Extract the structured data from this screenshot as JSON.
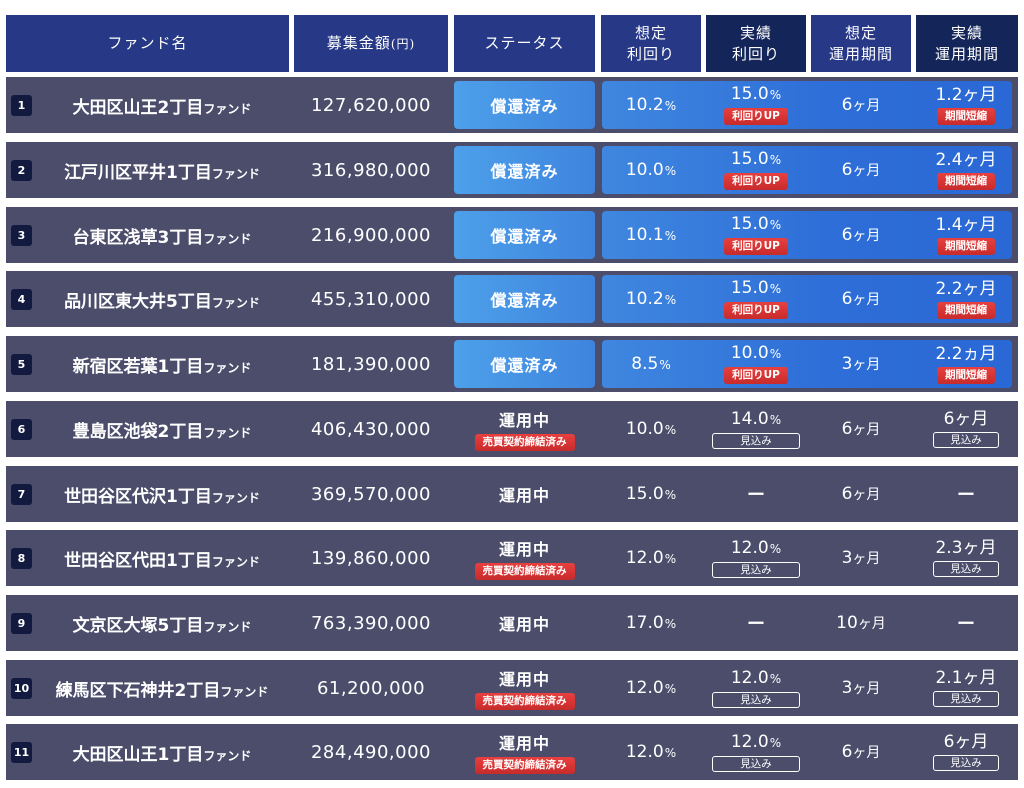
{
  "header": {
    "fund_name": "ファンド名",
    "amount": "募集金額",
    "amount_unit": "(円)",
    "status": "ステータス",
    "expected_yield_line1": "想定",
    "expected_yield_line2": "利回り",
    "actual_yield_line1": "実績",
    "actual_yield_line2": "利回り",
    "expected_period_line1": "想定",
    "expected_period_line2": "運用期間",
    "actual_period_line1": "実績",
    "actual_period_line2": "運用期間"
  },
  "colors": {
    "header_blue": "#263886",
    "header_navy": "#142659",
    "row_bg": "#4b4d6b",
    "redeemed_bg": "#3e84de",
    "badge_red": "#d23333"
  },
  "rows": [
    {
      "no": "1",
      "name": "大田区山王2丁目",
      "suffix": "ファンド",
      "amount": "127,620,000",
      "status": "償還済み",
      "status_badge": "",
      "expected_yield": "10.2",
      "actual_yield": "15.0",
      "actual_yield_unit": "%",
      "actual_yield_badge": "利回りUP",
      "expected_period": "6",
      "expected_period_unit": "ヶ月",
      "actual_period": "1.2",
      "actual_period_unit": "ヶ月",
      "actual_period_badge": "期間短縮",
      "redeemed": true
    },
    {
      "no": "2",
      "name": "江戸川区平井1丁目",
      "suffix": "ファンド",
      "amount": "316,980,000",
      "status": "償還済み",
      "status_badge": "",
      "expected_yield": "10.0",
      "actual_yield": "15.0",
      "actual_yield_unit": "%",
      "actual_yield_badge": "利回りUP",
      "expected_period": "6",
      "expected_period_unit": "ヶ月",
      "actual_period": "2.4",
      "actual_period_unit": "ヶ月",
      "actual_period_badge": "期間短縮",
      "redeemed": true
    },
    {
      "no": "3",
      "name": "台東区浅草3丁目",
      "suffix": "ファンド",
      "amount": "216,900,000",
      "status": "償還済み",
      "status_badge": "",
      "expected_yield": "10.1",
      "actual_yield": "15.0",
      "actual_yield_unit": "%",
      "actual_yield_badge": "利回りUP",
      "expected_period": "6",
      "expected_period_unit": "ヶ月",
      "actual_period": "1.4",
      "actual_period_unit": "ヶ月",
      "actual_period_badge": "期間短縮",
      "redeemed": true
    },
    {
      "no": "4",
      "name": "品川区東大井5丁目",
      "suffix": "ファンド",
      "amount": "455,310,000",
      "status": "償還済み",
      "status_badge": "",
      "expected_yield": "10.2",
      "actual_yield": "15.0",
      "actual_yield_unit": "%",
      "actual_yield_badge": "利回りUP",
      "expected_period": "6",
      "expected_period_unit": "ヶ月",
      "actual_period": "2.2",
      "actual_period_unit": "ヶ月",
      "actual_period_badge": "期間短縮",
      "redeemed": true
    },
    {
      "no": "5",
      "name": "新宿区若葉1丁目",
      "suffix": "ファンド",
      "amount": "181,390,000",
      "status": "償還済み",
      "status_badge": "",
      "expected_yield": "8.5",
      "actual_yield": "10.0",
      "actual_yield_unit": "%",
      "actual_yield_badge": "利回りUP",
      "expected_period": "3",
      "expected_period_unit": "ヶ月",
      "actual_period": "2.2",
      "actual_period_unit": "ヵ月",
      "actual_period_badge": "期間短縮",
      "redeemed": true
    },
    {
      "no": "6",
      "name": "豊島区池袋2丁目",
      "suffix": "ファンド",
      "amount": "406,430,000",
      "status": "運用中",
      "status_badge": "売買契約締結済み",
      "expected_yield": "10.0",
      "actual_yield": "14.0",
      "actual_yield_unit": "%",
      "actual_yield_badge": "見込み",
      "expected_period": "6",
      "expected_period_unit": "ヶ月",
      "actual_period": "6",
      "actual_period_unit": "ヶ月",
      "actual_period_badge": "見込み",
      "redeemed": false
    },
    {
      "no": "7",
      "name": "世田谷区代沢1丁目",
      "suffix": "ファンド",
      "amount": "369,570,000",
      "status": "運用中",
      "status_badge": "",
      "expected_yield": "15.0",
      "actual_yield": "ー",
      "actual_yield_unit": "",
      "actual_yield_badge": "",
      "expected_period": "6",
      "expected_period_unit": "ヶ月",
      "actual_period": "ー",
      "actual_period_unit": "",
      "actual_period_badge": "",
      "redeemed": false
    },
    {
      "no": "8",
      "name": "世田谷区代田1丁目",
      "suffix": "ファンド",
      "amount": "139,860,000",
      "status": "運用中",
      "status_badge": "売買契約締結済み",
      "expected_yield": "12.0",
      "actual_yield": "12.0",
      "actual_yield_unit": "%",
      "actual_yield_badge": "見込み",
      "expected_period": "3",
      "expected_period_unit": "ヶ月",
      "actual_period": "2.3",
      "actual_period_unit": "ヶ月",
      "actual_period_badge": "見込み",
      "redeemed": false
    },
    {
      "no": "9",
      "name": "文京区大塚5丁目",
      "suffix": "ファンド",
      "amount": "763,390,000",
      "status": "運用中",
      "status_badge": "",
      "expected_yield": "17.0",
      "actual_yield": "ー",
      "actual_yield_unit": "",
      "actual_yield_badge": "",
      "expected_period": "10",
      "expected_period_unit": "ヶ月",
      "actual_period": "ー",
      "actual_period_unit": "",
      "actual_period_badge": "",
      "redeemed": false
    },
    {
      "no": "10",
      "name": "練馬区下石神井2丁目",
      "suffix": "ファンド",
      "amount": "61,200,000",
      "status": "運用中",
      "status_badge": "売買契約締結済み",
      "expected_yield": "12.0",
      "actual_yield": "12.0",
      "actual_yield_unit": "%",
      "actual_yield_badge": "見込み",
      "expected_period": "3",
      "expected_period_unit": "ヶ月",
      "actual_period": "2.1",
      "actual_period_unit": "ヶ月",
      "actual_period_badge": "見込み",
      "redeemed": false
    },
    {
      "no": "11",
      "name": "大田区山王1丁目",
      "suffix": "ファンド",
      "amount": "284,490,000",
      "status": "運用中",
      "status_badge": "売買契約締結済み",
      "expected_yield": "12.0",
      "actual_yield": "12.0",
      "actual_yield_unit": "%",
      "actual_yield_badge": "見込み",
      "expected_period": "6",
      "expected_period_unit": "ヶ月",
      "actual_period": "6",
      "actual_period_unit": "ヶ月",
      "actual_period_badge": "見込み",
      "redeemed": false
    }
  ]
}
